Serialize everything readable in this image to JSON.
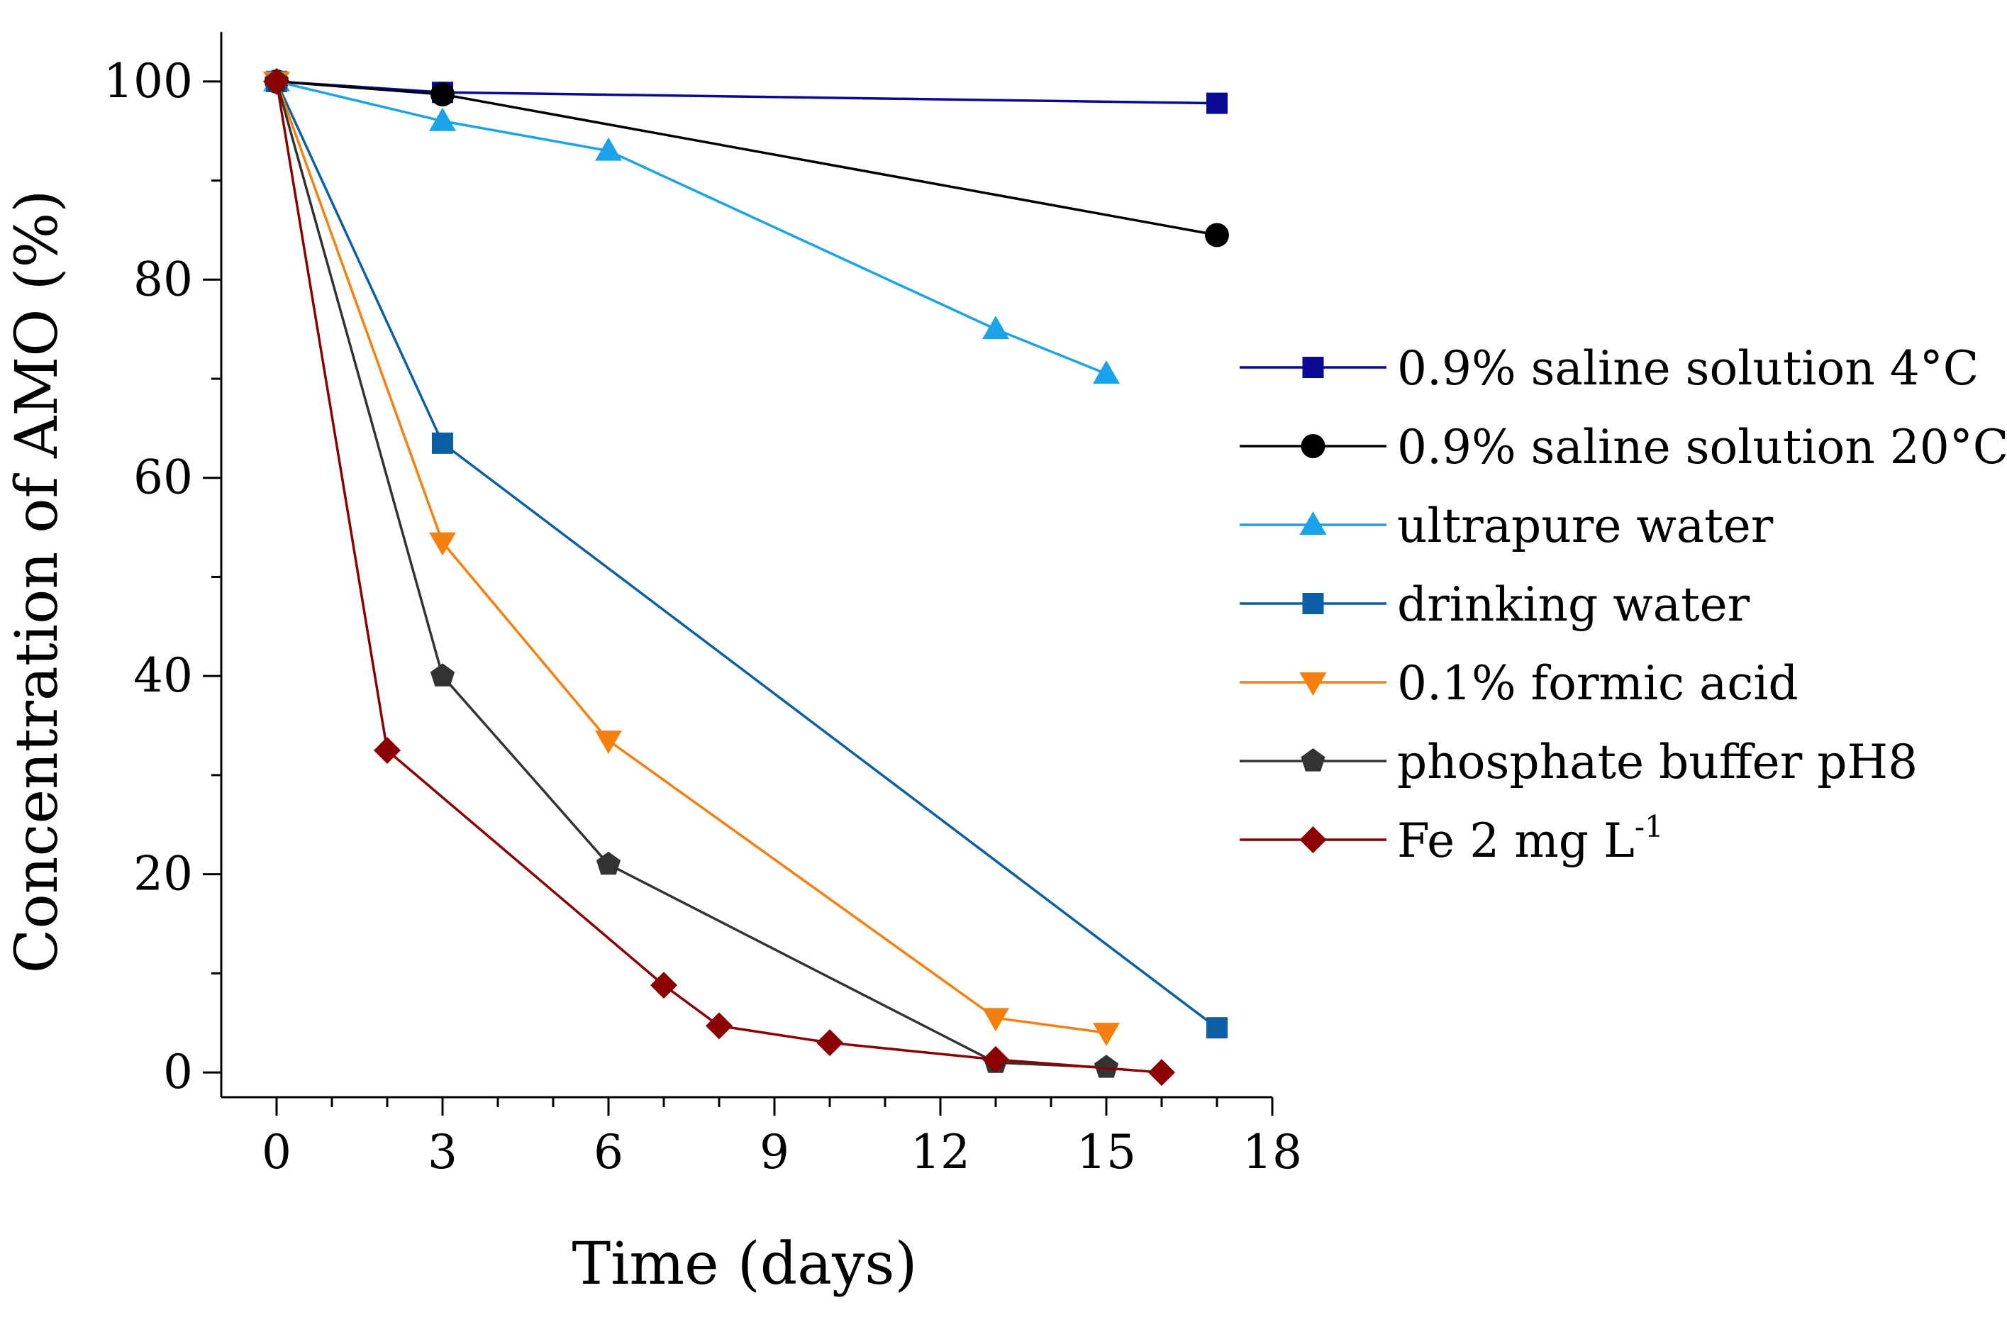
{
  "chart_data": {
    "type": "line",
    "xlabel": "Time (days)",
    "ylabel": "Concentration of AMO (%)",
    "xlim": [
      -1,
      18
    ],
    "ylim": [
      -2.5,
      105
    ],
    "xticks": [
      0,
      3,
      6,
      9,
      12,
      15,
      18
    ],
    "yticks": [
      0,
      20,
      40,
      60,
      80,
      100
    ],
    "grid": false,
    "legend_position": "right",
    "series": [
      {
        "name": "0.9% saline solution 4°C",
        "label_main": "0.9% saline solution 4°C",
        "label_sup": "",
        "color": "#0a0a96",
        "marker": "square",
        "x": [
          0,
          3,
          17
        ],
        "y": [
          100,
          98.9,
          97.8
        ]
      },
      {
        "name": "0.9% saline solution 20°C",
        "label_main": "0.9% saline solution 20°C",
        "label_sup": "",
        "color": "#000000",
        "marker": "circle",
        "x": [
          0,
          3,
          17
        ],
        "y": [
          100,
          98.7,
          84.5
        ]
      },
      {
        "name": "ultrapure water",
        "label_main": "ultrapure water",
        "label_sup": "",
        "color": "#1aa3e8",
        "marker": "triangle-up",
        "x": [
          0,
          3,
          6,
          13,
          15
        ],
        "y": [
          100,
          96,
          93,
          75,
          70.5
        ]
      },
      {
        "name": "drinking water",
        "label_main": "drinking water",
        "label_sup": "",
        "color": "#0b5fa5",
        "marker": "square",
        "x": [
          0,
          3,
          17
        ],
        "y": [
          100,
          63.5,
          4.5
        ]
      },
      {
        "name": "0.1% formic acid",
        "label_main": "0.1% formic acid",
        "label_sup": "",
        "color": "#f57f0f",
        "marker": "triangle-down",
        "x": [
          0,
          3,
          6,
          13,
          15
        ],
        "y": [
          100,
          53.5,
          33.5,
          5.5,
          4
        ]
      },
      {
        "name": "phosphate buffer pH8",
        "label_main": "phosphate buffer pH8",
        "label_sup": "",
        "color": "#333333",
        "marker": "pentagon",
        "x": [
          0,
          3,
          6,
          13,
          15
        ],
        "y": [
          100,
          40,
          21,
          1,
          0.5
        ]
      },
      {
        "name": "Fe 2 mg L-1",
        "label_main": "Fe 2 mg L",
        "label_sup": "-1",
        "color": "#8b0000",
        "marker": "diamond",
        "x": [
          0,
          2,
          7,
          8,
          10,
          13,
          16
        ],
        "y": [
          100,
          32.5,
          8.8,
          4.7,
          3,
          1.3,
          0
        ]
      }
    ]
  }
}
